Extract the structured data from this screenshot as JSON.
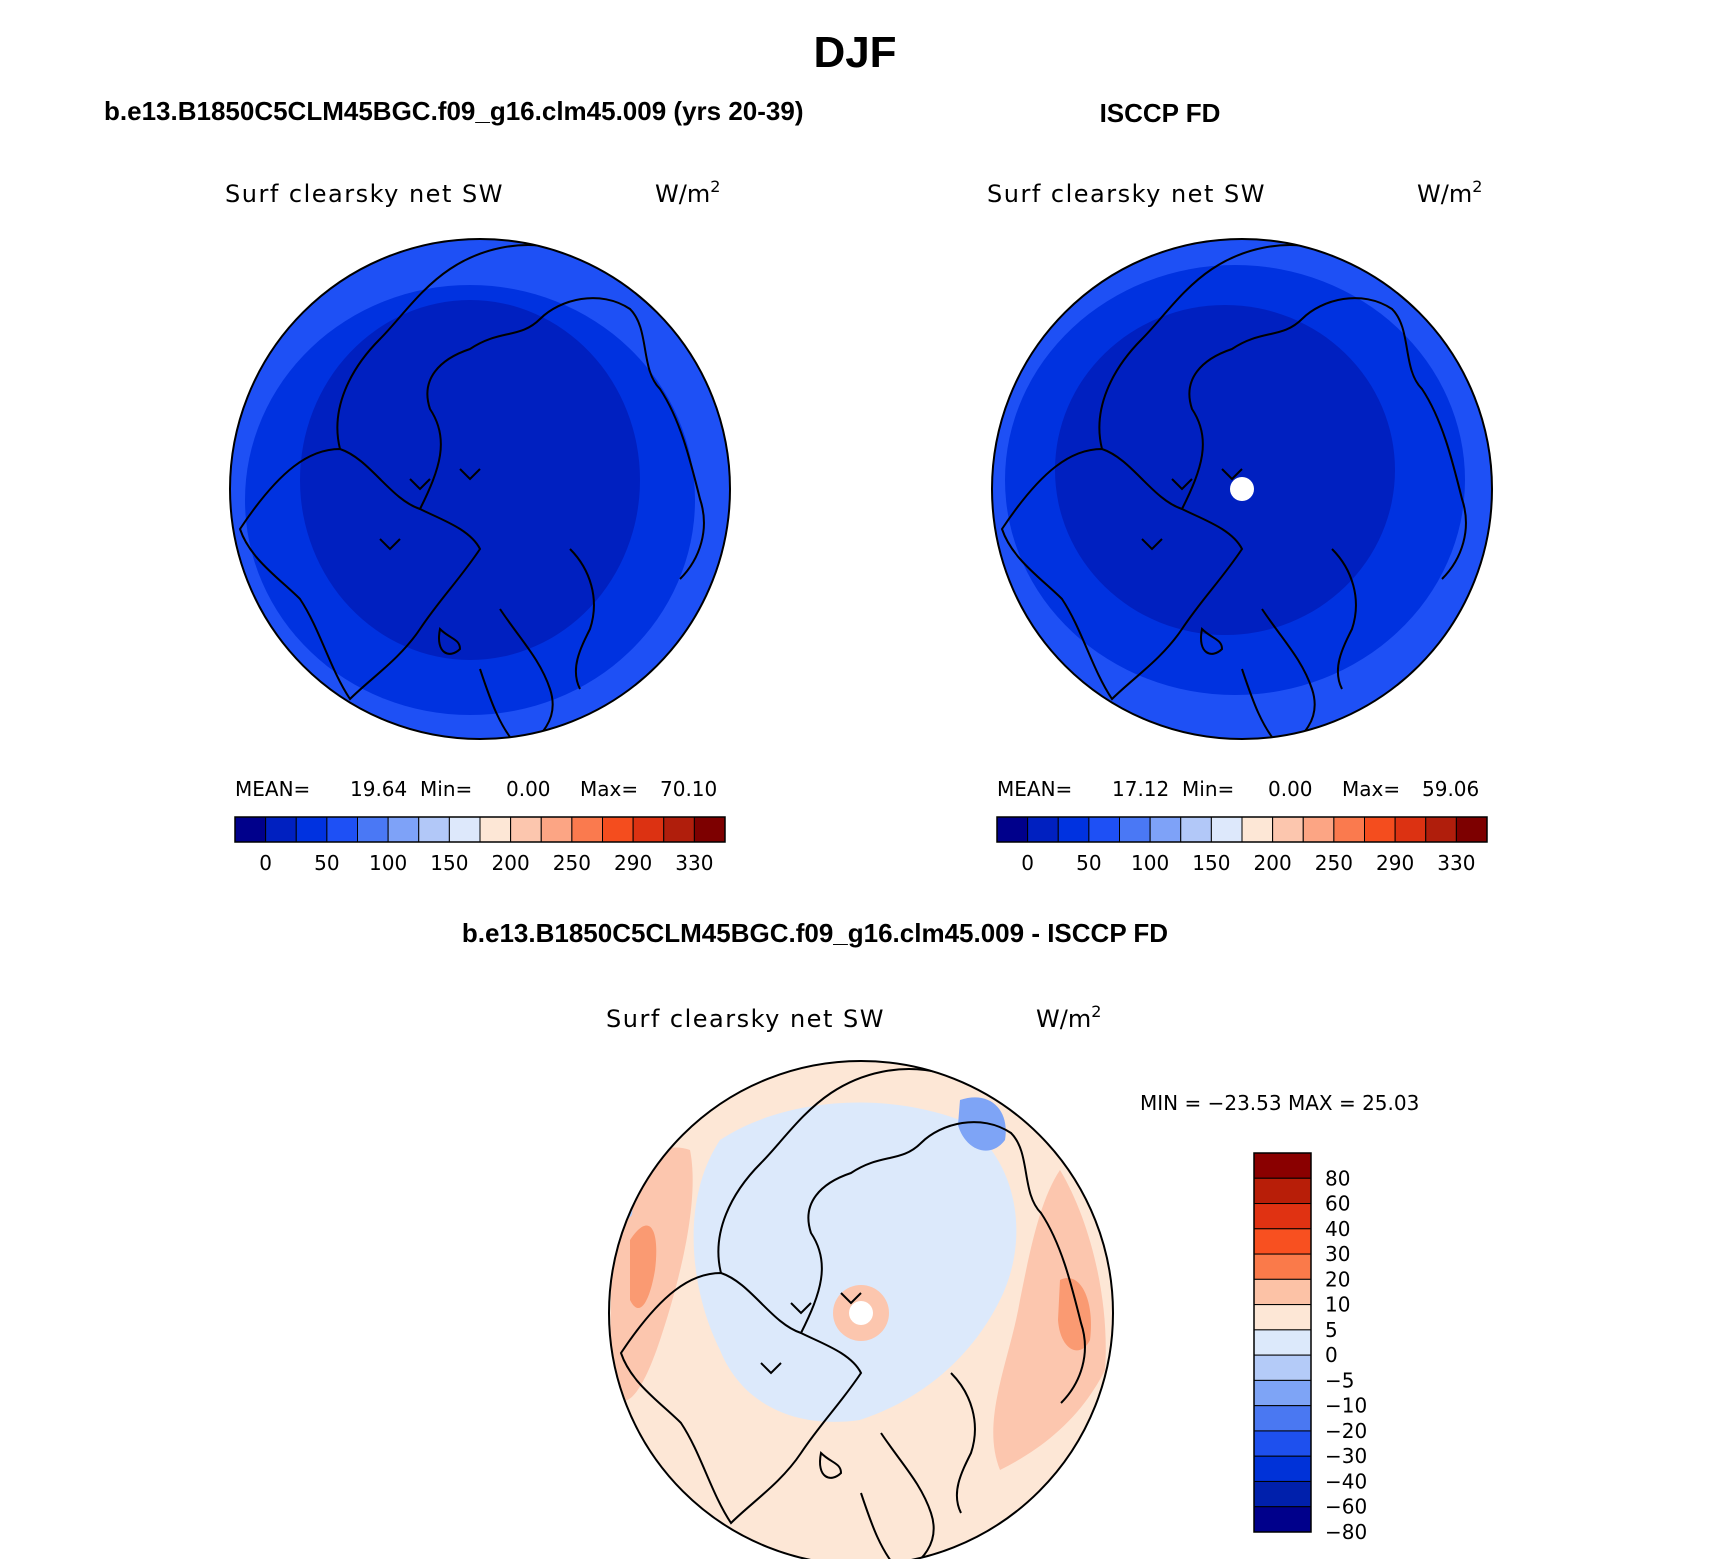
{
  "main_title": "DJF",
  "panels": [
    {
      "title": "b.e13.B1850C5CLM45BGC.f09_g16.clm45.009 (yrs 20-39)",
      "variable": "Surf clearsky net SW",
      "units": "W/m",
      "units_sup": "2",
      "stats": {
        "mean_label": "MEAN=",
        "mean": "19.64",
        "min_label": "Min=",
        "min": "0.00",
        "max_label": "Max=",
        "max": "70.10"
      }
    },
    {
      "title": "ISCCP FD",
      "variable": "Surf clearsky net SW",
      "units": "W/m",
      "units_sup": "2",
      "stats": {
        "mean_label": "MEAN=",
        "mean": "17.12",
        "min_label": "Min=",
        "min": "0.00",
        "max_label": "Max=",
        "max": "59.06"
      }
    },
    {
      "title": "b.e13.B1850C5CLM45BGC.f09_g16.clm45.009 - ISCCP FD",
      "variable": "Surf clearsky net SW",
      "units": "W/m",
      "units_sup": "2",
      "stats_line": "MIN = −23.53 MAX =  25.03"
    }
  ],
  "abs_colorbar": {
    "colors": [
      "#00008b",
      "#0020c0",
      "#0032e0",
      "#1e50f5",
      "#4a78f5",
      "#7ea2f8",
      "#b2c8f8",
      "#dde8fb",
      "#fde7d6",
      "#fcc6ae",
      "#fca584",
      "#fa7a4e",
      "#f44d1e",
      "#dc3212",
      "#b01e0c",
      "#7d0000"
    ],
    "tick_labels": [
      "0",
      "50",
      "100",
      "150",
      "200",
      "250",
      "290",
      "330"
    ]
  },
  "diff_colorbar": {
    "colors_top_to_bottom": [
      "#8a0000",
      "#b81e08",
      "#e03212",
      "#f85020",
      "#fa7a4a",
      "#fcc2a6",
      "#fde7d6",
      "#dce9fb",
      "#b4cbf8",
      "#7ea4f6",
      "#4a78f2",
      "#1e50ee",
      "#0032d8",
      "#0020ac",
      "#00008b"
    ],
    "tick_labels": [
      "80",
      "60",
      "40",
      "30",
      "20",
      "10",
      "5",
      "0",
      "−5",
      "−10",
      "−20",
      "−30",
      "−40",
      "−60",
      "−80"
    ]
  },
  "map_colors": {
    "abs_outer": "#1e50f5",
    "abs_mid": "#0032e0",
    "abs_inner": "#0020c0",
    "diff_neutral_pos": "#fde7d6",
    "diff_light_pos": "#fcc6ae",
    "diff_mid_pos": "#fa9a72",
    "diff_neutral_neg": "#dce9fb",
    "diff_light_neg": "#b4cbf8",
    "diff_mid_neg": "#7ea4f6"
  }
}
